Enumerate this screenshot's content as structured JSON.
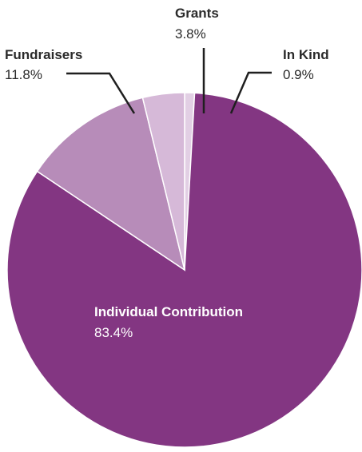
{
  "chart_data": {
    "type": "pie",
    "start_angle_deg": 0,
    "direction": "clockwise",
    "slices": [
      {
        "label": "In Kind",
        "value_text": "0.9%",
        "value": 0.9,
        "color": "#e2cfe4"
      },
      {
        "label": "Individual Contribution",
        "value_text": "83.4%",
        "value": 83.4,
        "color": "#833682"
      },
      {
        "label": "Fundraisers",
        "value_text": "11.8%",
        "value": 11.8,
        "color": "#b78cb9"
      },
      {
        "label": "Grants",
        "value_text": "3.8%",
        "value": 3.8,
        "color": "#d6b9d8"
      }
    ]
  }
}
